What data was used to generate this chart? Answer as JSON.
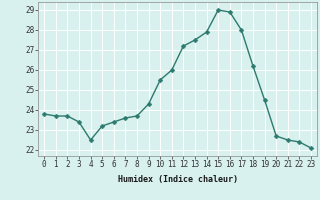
{
  "x": [
    0,
    1,
    2,
    3,
    4,
    5,
    6,
    7,
    8,
    9,
    10,
    11,
    12,
    13,
    14,
    15,
    16,
    17,
    18,
    19,
    20,
    21,
    22,
    23
  ],
  "y": [
    23.8,
    23.7,
    23.7,
    23.4,
    22.5,
    23.2,
    23.4,
    23.6,
    23.7,
    24.3,
    25.5,
    26.0,
    27.2,
    27.5,
    27.9,
    29.0,
    28.9,
    28.0,
    26.2,
    24.5,
    22.7,
    22.5,
    22.4,
    22.1
  ],
  "line_color": "#2d7a6e",
  "marker_color": "#2d7a6e",
  "bg_color": "#d8f0ee",
  "grid_color": "#ffffff",
  "grid_minor_color": "#e8f8f6",
  "xlabel": "Humidex (Indice chaleur)",
  "ylim": [
    21.7,
    29.4
  ],
  "yticks": [
    22,
    23,
    24,
    25,
    26,
    27,
    28,
    29
  ],
  "xticks": [
    0,
    1,
    2,
    3,
    4,
    5,
    6,
    7,
    8,
    9,
    10,
    11,
    12,
    13,
    14,
    15,
    16,
    17,
    18,
    19,
    20,
    21,
    22,
    23
  ],
  "linewidth": 1.0,
  "markersize": 2.5,
  "tick_fontsize": 5.5,
  "xlabel_fontsize": 6.0
}
